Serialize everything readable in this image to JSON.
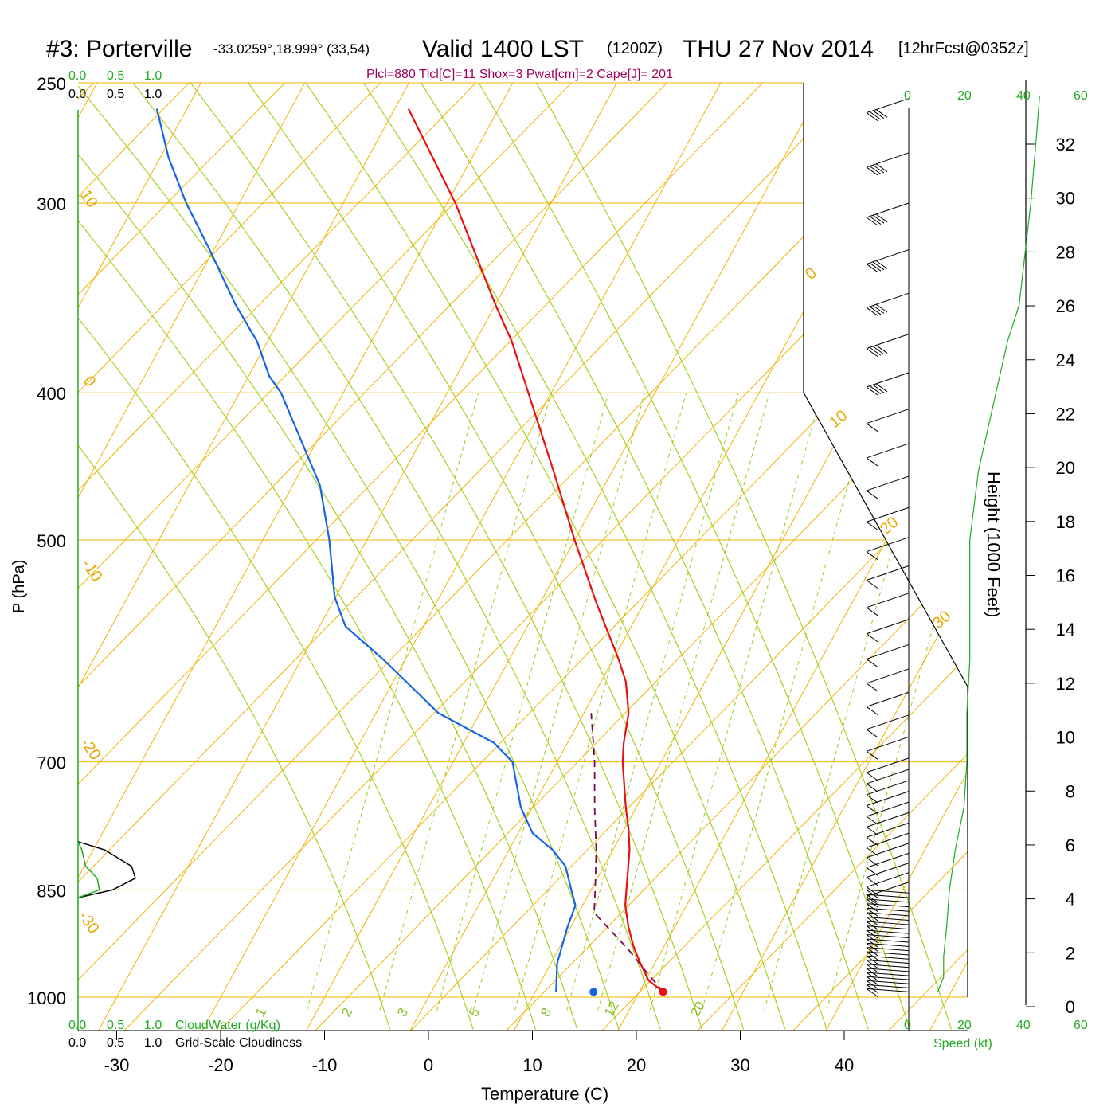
{
  "title": {
    "station": "#3: Porterville",
    "coords": "-33.0259°,18.999° (33,54)",
    "valid": "Valid 1400 LST",
    "utc": "(1200Z)",
    "date": "THU 27 Nov 2014",
    "forecast": "[12hrFcst@0352z]"
  },
  "info_line": "Plcl=880 Tlcl[C]=11 Shox=3 Pwat[cm]=2 Cape[J]= 201",
  "colors": {
    "temperature": "#e81010",
    "dewpoint": "#1464e6",
    "parcel": "#7a0a4a",
    "isotherm": "#f0b400",
    "mixing_ratio": "#9ccc20",
    "adiabat": "#a8d020",
    "cloud_water": "#22aa22",
    "cloudiness": "#000000"
  },
  "chart_data": {
    "type": "skew-T log-P sounding",
    "xlabel": "Temperature (C)",
    "ylabel": "P (hPa)",
    "x_ticks": [
      "-30",
      "-20",
      "-10",
      "0",
      "10",
      "20",
      "30",
      "40"
    ],
    "y_ticks": [
      "250",
      "300",
      "400",
      "500",
      "700",
      "850",
      "1000"
    ],
    "isotherm_labels": [
      "10",
      "0",
      "-10",
      "-20",
      "-30",
      "0",
      "10",
      "20",
      "30"
    ],
    "mixing_ratio_labels": [
      "1",
      "2",
      "3",
      "5",
      "8",
      "12",
      "20"
    ],
    "cloud_axis_top_green": [
      "0.0",
      "0.5",
      "1.0"
    ],
    "cloud_axis_top_black": [
      "0.0",
      "0.5",
      "1.0"
    ],
    "cloud_axis_bottom_green": [
      "0.0",
      "0.5",
      "1.0"
    ],
    "cloud_axis_bottom_black": [
      "0.0",
      "0.5",
      "1.0"
    ],
    "cloudwater_label": "CloudWater (g/Kg)",
    "cloudiness_label": "Grid-Scale Cloudiness",
    "temperature_profile": [
      {
        "p": 992,
        "t": 22.3
      },
      {
        "p": 975,
        "t": 20.3
      },
      {
        "p": 950,
        "t": 18.6
      },
      {
        "p": 925,
        "t": 17.0
      },
      {
        "p": 900,
        "t": 15.6
      },
      {
        "p": 870,
        "t": 14.1
      },
      {
        "p": 850,
        "t": 13.4
      },
      {
        "p": 800,
        "t": 11.6
      },
      {
        "p": 775,
        "t": 10.4
      },
      {
        "p": 750,
        "t": 9.0
      },
      {
        "p": 700,
        "t": 6.3
      },
      {
        "p": 680,
        "t": 5.4
      },
      {
        "p": 650,
        "t": 4.3
      },
      {
        "p": 620,
        "t": 2.4
      },
      {
        "p": 600,
        "t": 0.6
      },
      {
        "p": 550,
        "t": -4.6
      },
      {
        "p": 500,
        "t": -10.0
      },
      {
        "p": 450,
        "t": -15.7
      },
      {
        "p": 400,
        "t": -22.2
      },
      {
        "p": 370,
        "t": -26.5
      },
      {
        "p": 350,
        "t": -30.0
      },
      {
        "p": 300,
        "t": -39.2
      },
      {
        "p": 260,
        "t": -48.7
      }
    ],
    "dewpoint_profile": [
      {
        "p": 992,
        "t": 12.0
      },
      {
        "p": 950,
        "t": 10.6
      },
      {
        "p": 900,
        "t": 9.7
      },
      {
        "p": 870,
        "t": 9.3
      },
      {
        "p": 850,
        "t": 8.1
      },
      {
        "p": 820,
        "t": 6.3
      },
      {
        "p": 800,
        "t": 4.2
      },
      {
        "p": 780,
        "t": 1.4
      },
      {
        "p": 750,
        "t": -1.1
      },
      {
        "p": 700,
        "t": -4.3
      },
      {
        "p": 680,
        "t": -7.1
      },
      {
        "p": 650,
        "t": -14.0
      },
      {
        "p": 600,
        "t": -22.0
      },
      {
        "p": 570,
        "t": -27.5
      },
      {
        "p": 545,
        "t": -30.1
      },
      {
        "p": 500,
        "t": -33.6
      },
      {
        "p": 460,
        "t": -37.4
      },
      {
        "p": 400,
        "t": -46.0
      },
      {
        "p": 390,
        "t": -48.0
      },
      {
        "p": 370,
        "t": -51.0
      },
      {
        "p": 350,
        "t": -55.0
      },
      {
        "p": 320,
        "t": -60.8
      },
      {
        "p": 300,
        "t": -65.1
      },
      {
        "p": 280,
        "t": -69.2
      },
      {
        "p": 260,
        "t": -72.9
      }
    ],
    "parcel_profile": [
      {
        "p": 992,
        "t": 22.3
      },
      {
        "p": 960,
        "t": 19.4
      },
      {
        "p": 930,
        "t": 16.7
      },
      {
        "p": 880,
        "t": 11.5
      },
      {
        "p": 850,
        "t": 10.4
      },
      {
        "p": 800,
        "t": 8.4
      },
      {
        "p": 750,
        "t": 6.0
      },
      {
        "p": 700,
        "t": 3.6
      },
      {
        "p": 650,
        "t": 0.7
      }
    ],
    "surface_temperature": 22.3,
    "surface_dewpoint": 12.0,
    "surface_pressure": 992,
    "cloud_profile": [
      {
        "p": 790,
        "cloudiness": 0.0,
        "cloudwater": 0.0
      },
      {
        "p": 800,
        "cloudiness": 0.35,
        "cloudwater": 0.05
      },
      {
        "p": 820,
        "cloudiness": 0.7,
        "cloudwater": 0.1
      },
      {
        "p": 835,
        "cloudiness": 0.75,
        "cloudwater": 0.25
      },
      {
        "p": 850,
        "cloudiness": 0.45,
        "cloudwater": 0.28
      },
      {
        "p": 860,
        "cloudiness": 0.0,
        "cloudwater": 0.0
      }
    ],
    "wind_profile": {
      "speed_label": "Speed (kt)",
      "speed_ticks": [
        "0",
        "20",
        "40",
        "60"
      ],
      "levels": [
        {
          "p": 992,
          "speed": 10
        },
        {
          "p": 970,
          "speed": 12
        },
        {
          "p": 940,
          "speed": 12
        },
        {
          "p": 900,
          "speed": 13
        },
        {
          "p": 850,
          "speed": 14
        },
        {
          "p": 800,
          "speed": 16
        },
        {
          "p": 750,
          "speed": 19
        },
        {
          "p": 700,
          "speed": 20
        },
        {
          "p": 650,
          "speed": 20
        },
        {
          "p": 600,
          "speed": 21
        },
        {
          "p": 500,
          "speed": 21
        },
        {
          "p": 450,
          "speed": 24
        },
        {
          "p": 400,
          "speed": 30
        },
        {
          "p": 370,
          "speed": 34
        },
        {
          "p": 350,
          "speed": 38
        },
        {
          "p": 300,
          "speed": 42
        },
        {
          "p": 270,
          "speed": 44
        },
        {
          "p": 255,
          "speed": 45
        }
      ]
    },
    "height_axis": {
      "label": "Height (1000 Feet)",
      "ticks": [
        "0",
        "2",
        "4",
        "6",
        "8",
        "10",
        "12",
        "14",
        "16",
        "18",
        "20",
        "22",
        "24",
        "26",
        "28",
        "30",
        "32"
      ]
    }
  }
}
